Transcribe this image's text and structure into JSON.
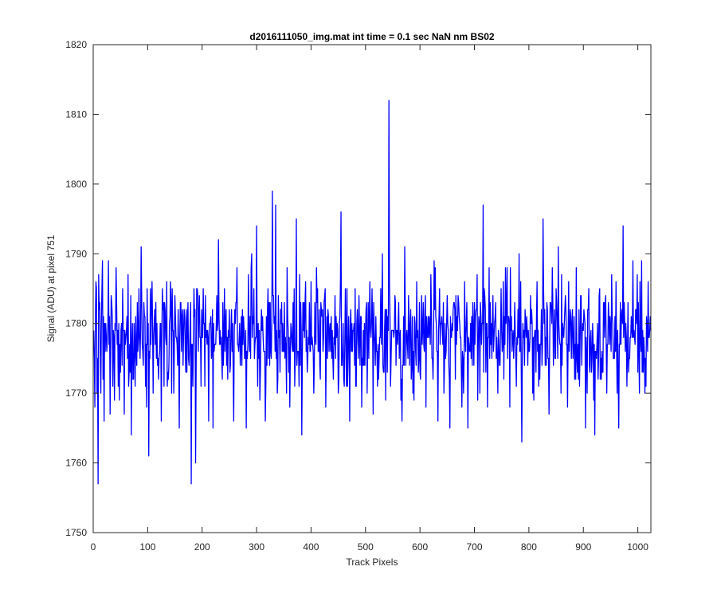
{
  "chart_data": {
    "type": "line",
    "title": "d2016111050_img.mat int time = 0.1 sec  NaN nm BS02",
    "xlabel": "Track Pixels",
    "ylabel": "Signal (ADU) at pixel 751",
    "xlim": [
      0,
      1024
    ],
    "ylim": [
      1750,
      1820
    ],
    "xticks": [
      0,
      100,
      200,
      300,
      400,
      500,
      600,
      700,
      800,
      900,
      1000
    ],
    "yticks": [
      1750,
      1760,
      1770,
      1780,
      1790,
      1800,
      1810,
      1820
    ],
    "grid": false,
    "series": [
      {
        "color": "#0000ff",
        "x_start": 1,
        "x_step": 1,
        "sample_points": [
          [
            1,
            1779
          ],
          [
            3,
            1768
          ],
          [
            5,
            1786
          ],
          [
            7,
            1770
          ],
          [
            9,
            1757
          ],
          [
            11,
            1782
          ],
          [
            14,
            1770
          ],
          [
            17,
            1789
          ],
          [
            20,
            1766
          ],
          [
            24,
            1778
          ],
          [
            28,
            1789
          ],
          [
            31,
            1767
          ],
          [
            35,
            1781
          ],
          [
            39,
            1769
          ],
          [
            42,
            1788
          ],
          [
            45,
            1779
          ],
          [
            48,
            1769
          ],
          [
            52,
            1780
          ],
          [
            57,
            1767
          ],
          [
            60,
            1778
          ],
          [
            65,
            1771
          ],
          [
            70,
            1764
          ],
          [
            75,
            1780
          ],
          [
            80,
            1774
          ],
          [
            85,
            1778
          ],
          [
            88,
            1791
          ],
          [
            92,
            1774
          ],
          [
            95,
            1781
          ],
          [
            98,
            1768
          ],
          [
            102,
            1761
          ],
          [
            106,
            1777
          ],
          [
            110,
            1770
          ],
          [
            115,
            1783
          ],
          [
            120,
            1772
          ],
          [
            125,
            1766
          ],
          [
            132,
            1782
          ],
          [
            138,
            1772
          ],
          [
            142,
            1786
          ],
          [
            148,
            1770
          ],
          [
            152,
            1778
          ],
          [
            158,
            1765
          ],
          [
            162,
            1776
          ],
          [
            168,
            1781
          ],
          [
            172,
            1773
          ],
          [
            176,
            1774
          ],
          [
            180,
            1757
          ],
          [
            184,
            1778
          ],
          [
            188,
            1760
          ],
          [
            193,
            1776
          ],
          [
            198,
            1771
          ],
          [
            202,
            1785
          ],
          [
            208,
            1779
          ],
          [
            212,
            1766
          ],
          [
            216,
            1781
          ],
          [
            220,
            1765
          ],
          [
            225,
            1777
          ],
          [
            230,
            1792
          ],
          [
            236,
            1775
          ],
          [
            241,
            1785
          ],
          [
            247,
            1772
          ],
          [
            253,
            1779
          ],
          [
            258,
            1766
          ],
          [
            264,
            1788
          ],
          [
            270,
            1774
          ],
          [
            276,
            1781
          ],
          [
            281,
            1765
          ],
          [
            286,
            1779
          ],
          [
            291,
            1790
          ],
          [
            296,
            1775
          ],
          [
            300,
            1794
          ],
          [
            306,
            1769
          ],
          [
            311,
            1781
          ],
          [
            316,
            1766
          ],
          [
            321,
            1785
          ],
          [
            326,
            1776
          ],
          [
            329,
            1799
          ],
          [
            332,
            1780
          ],
          [
            335,
            1797
          ],
          [
            338,
            1770
          ],
          [
            344,
            1782
          ],
          [
            350,
            1776
          ],
          [
            356,
            1788
          ],
          [
            361,
            1768
          ],
          [
            367,
            1783
          ],
          [
            373,
            1795
          ],
          [
            378,
            1771
          ],
          [
            383,
            1764
          ],
          [
            389,
            1783
          ],
          [
            394,
            1775
          ],
          [
            400,
            1786
          ],
          [
            405,
            1770
          ],
          [
            410,
            1788
          ],
          [
            416,
            1774
          ],
          [
            421,
            1782
          ],
          [
            427,
            1768
          ],
          [
            432,
            1781
          ],
          [
            438,
            1775
          ],
          [
            444,
            1784
          ],
          [
            450,
            1770
          ],
          [
            455,
            1796
          ],
          [
            460,
            1772
          ],
          [
            466,
            1785
          ],
          [
            471,
            1766
          ],
          [
            477,
            1779
          ],
          [
            482,
            1771
          ],
          [
            488,
            1784
          ],
          [
            493,
            1768
          ],
          [
            498,
            1780
          ],
          [
            503,
            1770
          ],
          [
            508,
            1786
          ],
          [
            514,
            1767
          ],
          [
            519,
            1781
          ],
          [
            525,
            1775
          ],
          [
            531,
            1790
          ],
          [
            537,
            1769
          ],
          [
            543,
            1812
          ],
          [
            546,
            1771
          ],
          [
            550,
            1779
          ],
          [
            556,
            1774
          ],
          [
            561,
            1783
          ],
          [
            567,
            1766
          ],
          [
            572,
            1791
          ],
          [
            578,
            1775
          ],
          [
            583,
            1782
          ],
          [
            589,
            1769
          ],
          [
            594,
            1786
          ],
          [
            600,
            1773
          ],
          [
            605,
            1779
          ],
          [
            611,
            1768
          ],
          [
            617,
            1781
          ],
          [
            622,
            1775
          ],
          [
            628,
            1788
          ],
          [
            633,
            1766
          ],
          [
            638,
            1780
          ],
          [
            644,
            1770
          ],
          [
            650,
            1784
          ],
          [
            655,
            1765
          ],
          [
            660,
            1779
          ],
          [
            665,
            1772
          ],
          [
            671,
            1783
          ],
          [
            677,
            1768
          ],
          [
            682,
            1786
          ],
          [
            688,
            1765
          ],
          [
            693,
            1780
          ],
          [
            699,
            1774
          ],
          [
            705,
            1787
          ],
          [
            710,
            1770
          ],
          [
            716,
            1797
          ],
          [
            721,
            1773
          ],
          [
            727,
            1788
          ],
          [
            732,
            1775
          ],
          [
            738,
            1781
          ],
          [
            743,
            1770
          ],
          [
            749,
            1785
          ],
          [
            754,
            1772
          ],
          [
            760,
            1788
          ],
          [
            765,
            1768
          ],
          [
            771,
            1779
          ],
          [
            777,
            1771
          ],
          [
            782,
            1790
          ],
          [
            787,
            1763
          ],
          [
            793,
            1782
          ],
          [
            798,
            1774
          ],
          [
            804,
            1780
          ],
          [
            809,
            1769
          ],
          [
            815,
            1786
          ],
          [
            820,
            1772
          ],
          [
            826,
            1795
          ],
          [
            831,
            1778
          ],
          [
            837,
            1767
          ],
          [
            842,
            1780
          ],
          [
            848,
            1775
          ],
          [
            854,
            1791
          ],
          [
            859,
            1770
          ],
          [
            865,
            1780
          ],
          [
            871,
            1768
          ],
          [
            876,
            1782
          ],
          [
            881,
            1775
          ],
          [
            887,
            1788
          ],
          [
            893,
            1771
          ],
          [
            898,
            1779
          ],
          [
            904,
            1765
          ],
          [
            910,
            1785
          ],
          [
            915,
            1773
          ],
          [
            921,
            1764
          ],
          [
            926,
            1780
          ],
          [
            932,
            1775
          ],
          [
            938,
            1783
          ],
          [
            943,
            1770
          ],
          [
            949,
            1781
          ],
          [
            955,
            1775
          ],
          [
            960,
            1786
          ],
          [
            965,
            1765
          ],
          [
            970,
            1781
          ],
          [
            973,
            1794
          ],
          [
            977,
            1776
          ],
          [
            982,
            1783
          ],
          [
            987,
            1778
          ],
          [
            991,
            1789
          ],
          [
            995,
            1777
          ],
          [
            999,
            1787
          ],
          [
            1003,
            1770
          ],
          [
            1007,
            1789
          ],
          [
            1011,
            1778
          ],
          [
            1015,
            1771
          ],
          [
            1019,
            1786
          ],
          [
            1024,
            1779
          ]
        ]
      }
    ]
  }
}
